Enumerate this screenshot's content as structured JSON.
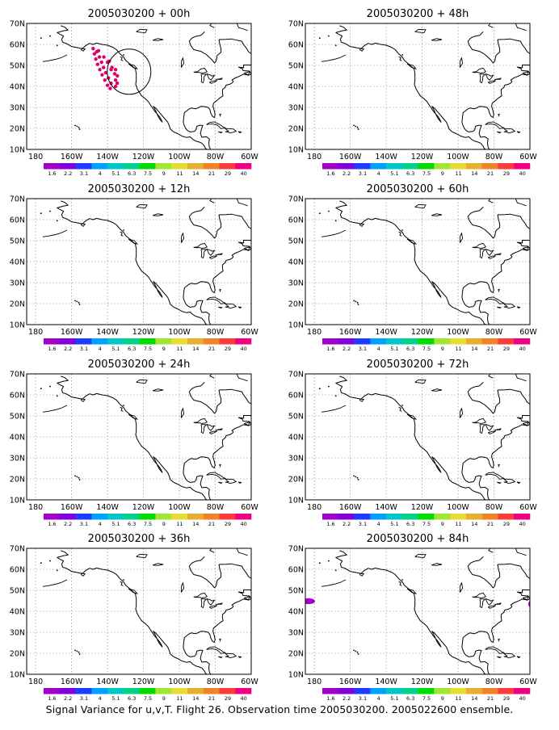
{
  "caption": "Signal Variance for u,v,T. Flight 26. Observation time 2005030200. 2005022600 ensemble.",
  "panels": [
    {
      "title": "2005030200 + 00h",
      "has_obs_ring": true,
      "signal_dots": true,
      "west_blob": false
    },
    {
      "title": "2005030200 + 12h",
      "has_obs_ring": false,
      "signal_dots": false,
      "west_blob": false
    },
    {
      "title": "2005030200 + 24h",
      "has_obs_ring": false,
      "signal_dots": false,
      "west_blob": false
    },
    {
      "title": "2005030200 + 36h",
      "has_obs_ring": false,
      "signal_dots": false,
      "west_blob": false
    },
    {
      "title": "2005030200 + 48h",
      "has_obs_ring": false,
      "signal_dots": false,
      "west_blob": false
    },
    {
      "title": "2005030200 + 60h",
      "has_obs_ring": false,
      "signal_dots": false,
      "west_blob": false
    },
    {
      "title": "2005030200 + 72h",
      "has_obs_ring": false,
      "signal_dots": false,
      "west_blob": false
    },
    {
      "title": "2005030200 + 84h",
      "has_obs_ring": false,
      "signal_dots": false,
      "west_blob": true
    }
  ],
  "axes": {
    "lon_ticks": [
      "180",
      "160W",
      "140W",
      "120W",
      "100W",
      "80W",
      "60W"
    ],
    "lat_ticks": [
      "70N",
      "60N",
      "50N",
      "40N",
      "30N",
      "20N",
      "10N"
    ]
  },
  "colorbar": {
    "labels": [
      "1.6",
      "2.2",
      "3.1",
      "4",
      "5.1",
      "6.3",
      "7.5",
      "9",
      "11",
      "14",
      "21",
      "29",
      "40"
    ],
    "colors": [
      "#a000c8",
      "#8200dc",
      "#1e3cff",
      "#00a0ff",
      "#00c8c8",
      "#00d28c",
      "#00dc00",
      "#a0e632",
      "#e6dc32",
      "#e6af2d",
      "#f08228",
      "#fa3c3c",
      "#f00082"
    ]
  },
  "signal": {
    "color": "#e0006a",
    "blob_color": "#a000c8"
  }
}
